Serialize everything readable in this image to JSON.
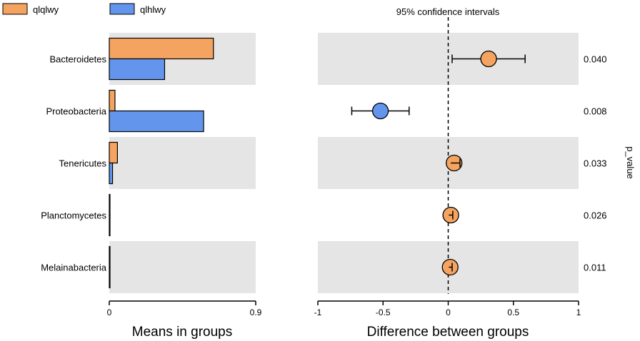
{
  "chart_data": {
    "type": "extended_error_bar",
    "legend": {
      "position": "top-left",
      "items": [
        {
          "name": "qlqlwy",
          "color": "#F4A460"
        },
        {
          "name": "qlhlwy",
          "color": "#6495ED"
        }
      ]
    },
    "categories": [
      "Bacteroidetes",
      "Proteobacteria",
      "Tenericutes",
      "Planctomycetes",
      "Melainabacteria"
    ],
    "left_panel": {
      "xlabel": "Means in groups",
      "xlim": [
        0,
        0.9
      ],
      "ticks": [
        {
          "value": 0,
          "label": "0"
        },
        {
          "value": 0.9,
          "label": "0.9"
        }
      ],
      "series": [
        {
          "name": "qlqlwy",
          "color": "#F4A460",
          "values": [
            0.64,
            0.035,
            0.05,
            0.004,
            0.003
          ]
        },
        {
          "name": "qlhlwy",
          "color": "#6495ED",
          "values": [
            0.34,
            0.58,
            0.02,
            0.003,
            0.002
          ]
        }
      ]
    },
    "right_panel": {
      "title": "95% confidence intervals",
      "xlabel": "Difference between groups",
      "xlim": [
        -1,
        1
      ],
      "ticks": [
        {
          "value": -1,
          "label": "-1"
        },
        {
          "value": -0.5,
          "label": "-0.5"
        },
        {
          "value": 0,
          "label": "0"
        },
        {
          "value": 0.5,
          "label": "0.5"
        },
        {
          "value": 1,
          "label": "1"
        }
      ],
      "reference_line": 0,
      "points": [
        {
          "category": "Bacteroidetes",
          "diff": 0.31,
          "ci": [
            0.03,
            0.59
          ],
          "color": "#F4A460"
        },
        {
          "category": "Proteobacteria",
          "diff": -0.52,
          "ci": [
            -0.74,
            -0.3
          ],
          "color": "#6495ED"
        },
        {
          "category": "Tenericutes",
          "diff": 0.045,
          "ci": [
            0.02,
            0.09
          ],
          "color": "#F4A460"
        },
        {
          "category": "Planctomycetes",
          "diff": 0.02,
          "ci": [
            0.005,
            0.035
          ],
          "color": "#F4A460"
        },
        {
          "category": "Melainabacteria",
          "diff": 0.015,
          "ci": [
            0.005,
            0.03
          ],
          "color": "#F4A460"
        }
      ]
    },
    "p_value_label": "p_value",
    "p_values": [
      "0.040",
      "0.008",
      "0.033",
      "0.026",
      "0.011"
    ],
    "band_color": "#E5E5E5"
  }
}
